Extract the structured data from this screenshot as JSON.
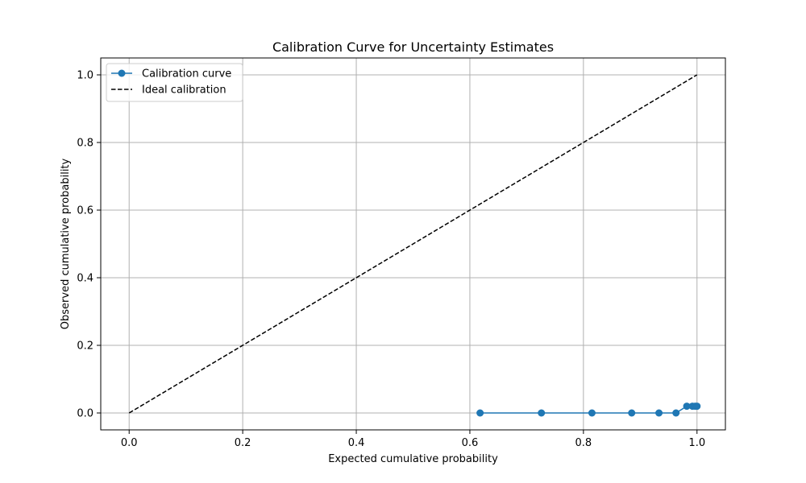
{
  "chart_data": {
    "type": "line",
    "title": "Calibration Curve for Uncertainty Estimates",
    "xlabel": "Expected cumulative probability",
    "ylabel": "Observed cumulative probability",
    "xlim": [
      -0.05,
      1.05
    ],
    "ylim": [
      -0.05,
      1.05
    ],
    "xticks": [
      0.0,
      0.2,
      0.4,
      0.6,
      0.8,
      1.0
    ],
    "yticks": [
      0.0,
      0.2,
      0.4,
      0.6,
      0.8,
      1.0
    ],
    "xtick_labels": [
      "0.0",
      "0.2",
      "0.4",
      "0.6",
      "0.8",
      "1.0"
    ],
    "ytick_labels": [
      "0.0",
      "0.2",
      "0.4",
      "0.6",
      "0.8",
      "1.0"
    ],
    "grid": true,
    "legend_position": "top-left",
    "series": [
      {
        "name": "Calibration curve",
        "color": "#1f77b4",
        "style": "solid",
        "marker": "circle",
        "x": [
          0.618,
          0.726,
          0.815,
          0.885,
          0.933,
          0.963,
          0.982,
          0.992,
          0.997,
          1.0
        ],
        "y": [
          0.0,
          0.0,
          0.0,
          0.0,
          0.0,
          0.0,
          0.02,
          0.02,
          0.02,
          0.02
        ]
      },
      {
        "name": "Ideal calibration",
        "color": "#000000",
        "style": "dashed",
        "marker": "none",
        "x": [
          0.0,
          1.0
        ],
        "y": [
          0.0,
          1.0
        ]
      }
    ]
  }
}
